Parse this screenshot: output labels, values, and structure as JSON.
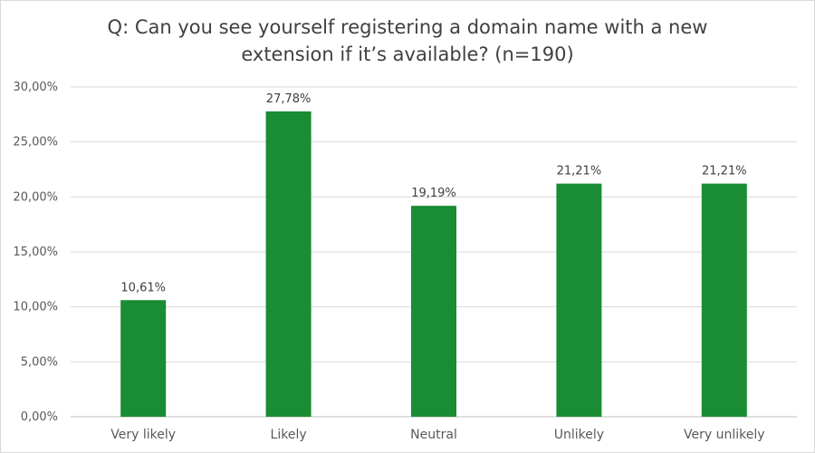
{
  "chart_data": {
    "type": "bar",
    "title_lines": [
      "Q: Can you see yourself registering a domain name with a new",
      "extension if it’s available? (n=190)"
    ],
    "categories": [
      "Very likely",
      "Likely",
      "Neutral",
      "Unlikely",
      "Very unlikely"
    ],
    "values": [
      10.61,
      27.78,
      19.19,
      21.21,
      21.21
    ],
    "data_labels": [
      "10,61%",
      "27,78%",
      "19,19%",
      "21,21%",
      "21,21%"
    ],
    "y_ticks": [
      0,
      5,
      10,
      15,
      20,
      25,
      30
    ],
    "y_tick_labels": [
      "0,00%",
      "5,00%",
      "10,00%",
      "15,00%",
      "20,00%",
      "25,00%",
      "30,00%"
    ],
    "ylim": [
      0,
      30
    ],
    "grid": true,
    "legend": "none",
    "bar_color": "#1a8c34"
  }
}
